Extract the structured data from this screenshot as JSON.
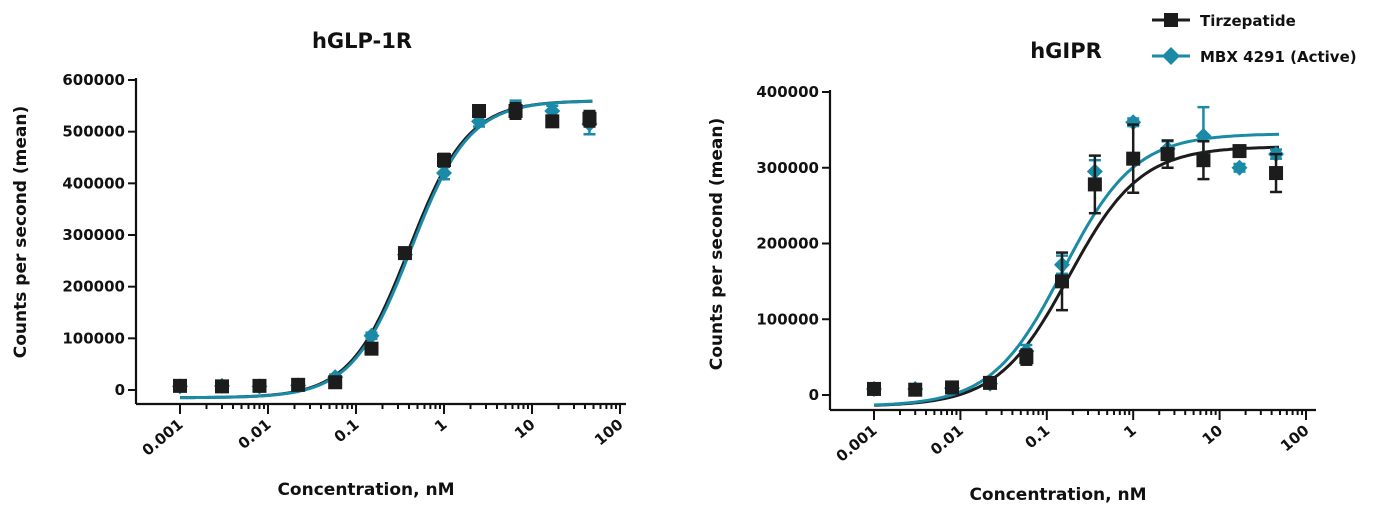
{
  "legend": {
    "placement": "top-right",
    "entries": [
      {
        "name": "Tirzepatide",
        "color": "#1c1c1c",
        "marker": "square"
      },
      {
        "name": "MBX 4291 (Active)",
        "color": "#1a8aa6",
        "marker": "diamond"
      }
    ]
  },
  "chart_data": [
    {
      "type": "scatter",
      "title": "hGLP-1R",
      "xlabel": "Concentration, nM",
      "ylabel": "Counts per second (mean)",
      "x_scale": "log",
      "xlim": [
        0.001,
        100
      ],
      "ylim": [
        -20000,
        600000
      ],
      "x_ticks": [
        0.001,
        0.01,
        0.1,
        1,
        10,
        100
      ],
      "x_tick_labels": [
        "0.001",
        "0.01",
        "0.1",
        "1",
        "10",
        "100"
      ],
      "y_ticks": [
        0,
        100000,
        200000,
        300000,
        400000,
        500000,
        600000
      ],
      "y_tick_labels": [
        "0",
        "100000",
        "200000",
        "300000",
        "400000",
        "500000",
        "600000"
      ],
      "grid": false,
      "series": [
        {
          "name": "Tirzepatide",
          "color": "#1c1c1c",
          "marker": "square",
          "x": [
            0.001,
            0.003,
            0.008,
            0.022,
            0.058,
            0.15,
            0.36,
            1.0,
            2.5,
            6.5,
            17,
            45
          ],
          "y": [
            8000,
            7000,
            8000,
            10000,
            15000,
            80000,
            265000,
            445000,
            540000,
            540000,
            520000,
            525000
          ],
          "err": [
            4000,
            4000,
            4000,
            4000,
            5000,
            6000,
            8000,
            12000,
            10000,
            15000,
            10000,
            15000
          ],
          "fit": {
            "bottom": -15000,
            "top": 560000,
            "ec50": 0.4,
            "hill": 1.3
          }
        },
        {
          "name": "MBX 4291 (Active)",
          "color": "#1a8aa6",
          "marker": "diamond",
          "x": [
            0.001,
            0.003,
            0.008,
            0.022,
            0.058,
            0.15,
            0.36,
            1.0,
            2.5,
            6.5,
            17,
            45
          ],
          "y": [
            7000,
            8000,
            7000,
            9000,
            25000,
            105000,
            262000,
            420000,
            520000,
            545000,
            540000,
            515000
          ],
          "err": [
            4000,
            4000,
            4000,
            4000,
            5000,
            6000,
            8000,
            12000,
            10000,
            15000,
            10000,
            20000
          ],
          "fit": {
            "bottom": -15000,
            "top": 560000,
            "ec50": 0.42,
            "hill": 1.3
          }
        }
      ]
    },
    {
      "type": "scatter",
      "title": "hGIPR",
      "xlabel": "Concentration, nM",
      "ylabel": "Counts per second (mean)",
      "x_scale": "log",
      "xlim": [
        0.001,
        100
      ],
      "ylim": [
        -10000,
        400000
      ],
      "x_ticks": [
        0.001,
        0.01,
        0.1,
        1,
        10,
        100
      ],
      "x_tick_labels": [
        "0.001",
        "0.01",
        "0.1",
        "1",
        "10",
        "100"
      ],
      "y_ticks": [
        0,
        100000,
        200000,
        300000,
        400000
      ],
      "y_tick_labels": [
        "0",
        "100000",
        "200000",
        "300000",
        "400000"
      ],
      "grid": false,
      "series": [
        {
          "name": "Tirzepatide",
          "color": "#1c1c1c",
          "marker": "square",
          "x": [
            0.001,
            0.003,
            0.008,
            0.022,
            0.058,
            0.15,
            0.36,
            1.0,
            2.5,
            6.5,
            17,
            45
          ],
          "y": [
            8000,
            7000,
            10000,
            16000,
            50000,
            150000,
            278000,
            312000,
            318000,
            310000,
            322000,
            293000
          ],
          "err": [
            4000,
            4000,
            4000,
            4000,
            10000,
            38000,
            38000,
            45000,
            18000,
            25000,
            6000,
            25000
          ],
          "fit": {
            "bottom": -15000,
            "top": 328000,
            "ec50": 0.18,
            "hill": 1.05
          }
        },
        {
          "name": "MBX 4291 (Active)",
          "color": "#1a8aa6",
          "marker": "diamond",
          "x": [
            0.001,
            0.003,
            0.008,
            0.022,
            0.058,
            0.15,
            0.36,
            1.0,
            2.5,
            6.5,
            17,
            45
          ],
          "y": [
            8000,
            8000,
            9000,
            15000,
            58000,
            172000,
            295000,
            360000,
            325000,
            342000,
            300000,
            318000
          ],
          "err": [
            4000,
            4000,
            4000,
            4000,
            8000,
            12000,
            15000,
            5000,
            10000,
            38000,
            5000,
            6000
          ],
          "fit": {
            "bottom": -15000,
            "top": 345000,
            "ec50": 0.155,
            "hill": 1.05
          }
        }
      ]
    }
  ]
}
